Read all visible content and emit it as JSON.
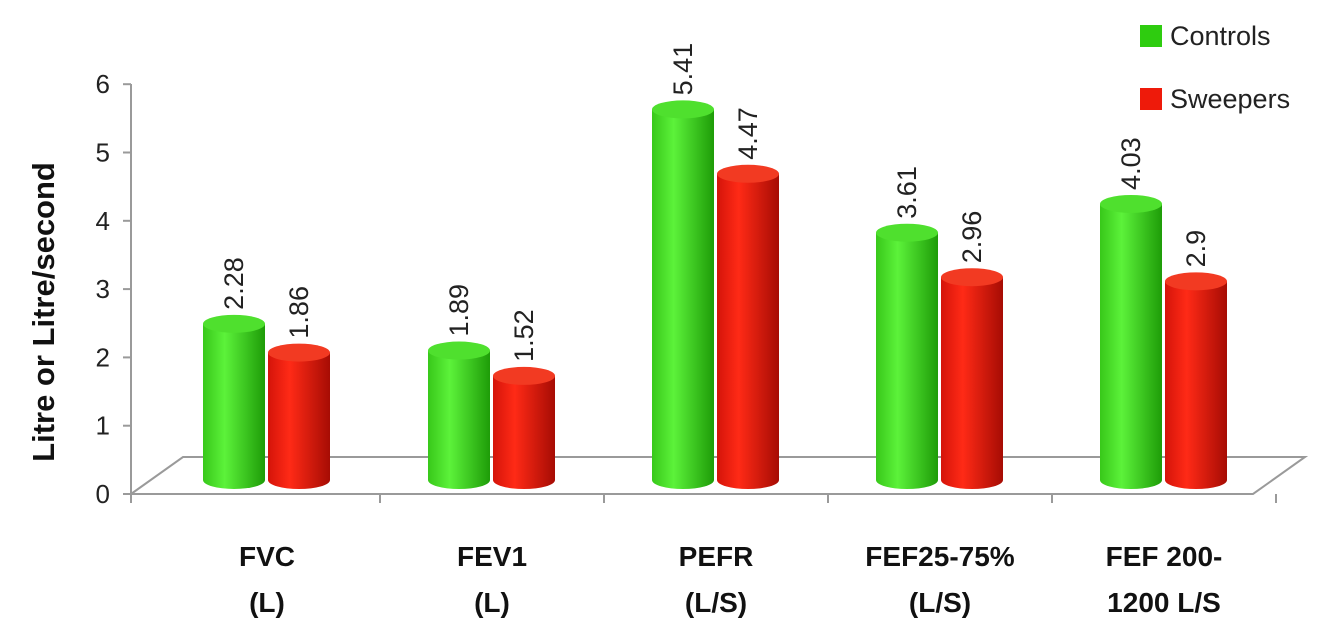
{
  "chart_data": {
    "type": "bar",
    "style": "3d-cylinder",
    "ylabel": "Litre or Litre/second",
    "ylim": [
      0,
      6
    ],
    "yticks": [
      "0",
      "1",
      "2",
      "3",
      "4",
      "5",
      "6"
    ],
    "categories": [
      [
        "FVC",
        "(L)"
      ],
      [
        "FEV1",
        "(L)"
      ],
      [
        "PEFR",
        "(L/S)"
      ],
      [
        "FEF25-75%",
        "(L/S)"
      ],
      [
        "FEF 200-",
        "1200 L/S"
      ]
    ],
    "series": [
      {
        "name": "Controls",
        "color": "#2ecc0f",
        "values": [
          2.28,
          1.89,
          5.41,
          3.61,
          4.03
        ],
        "labels": [
          "2.28",
          "1.89",
          "5.41",
          "3.61",
          "4.03"
        ]
      },
      {
        "name": "Sweepers",
        "color": "#ee1a0a",
        "values": [
          1.86,
          1.52,
          4.47,
          2.96,
          2.9
        ],
        "labels": [
          "1.86",
          "1.52",
          "4.47",
          "2.96",
          "2.9"
        ]
      }
    ],
    "legend": "top-right",
    "grid": false
  }
}
